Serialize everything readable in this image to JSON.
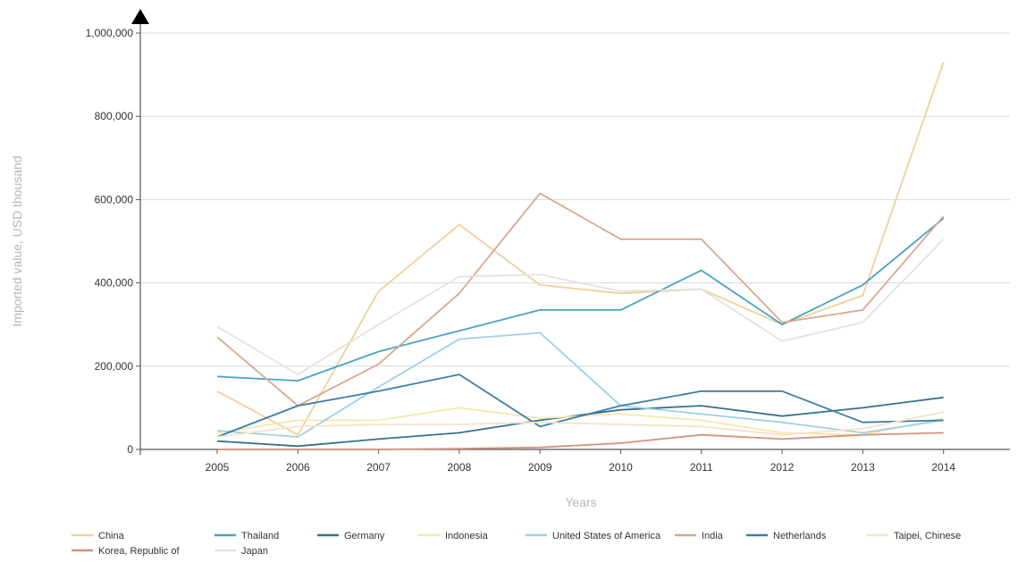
{
  "chart_data": {
    "type": "line",
    "xlabel": "Years",
    "ylabel": "Imported value, USD thousand",
    "x": [
      "2005",
      "2006",
      "2007",
      "2008",
      "2009",
      "2010",
      "2011",
      "2012",
      "2013",
      "2014"
    ],
    "ylim": [
      0,
      1000000
    ],
    "y_ticks": [
      {
        "value": 0,
        "label": "0"
      },
      {
        "value": 200000,
        "label": "200,000"
      },
      {
        "value": 400000,
        "label": "400,000"
      },
      {
        "value": 600000,
        "label": "600,000"
      },
      {
        "value": 800000,
        "label": "800,000"
      },
      {
        "value": 1000000,
        "label": "1,000,000"
      }
    ],
    "grid": true,
    "legend_position": "bottom",
    "series": [
      {
        "name": "China",
        "color": "#f2cf9a",
        "values": [
          140000,
          35000,
          380000,
          540000,
          395000,
          375000,
          385000,
          300000,
          370000,
          930000
        ]
      },
      {
        "name": "Thailand",
        "color": "#4aa3c4",
        "values": [
          175000,
          165000,
          235000,
          285000,
          335000,
          335000,
          430000,
          300000,
          395000,
          555000
        ]
      },
      {
        "name": "Germany",
        "color": "#35718c",
        "values": [
          20000,
          8000,
          25000,
          40000,
          70000,
          95000,
          105000,
          80000,
          100000,
          125000
        ]
      },
      {
        "name": "Indonesia",
        "color": "#f4e8ab",
        "values": [
          40000,
          70000,
          70000,
          100000,
          75000,
          85000,
          70000,
          40000,
          35000,
          75000
        ]
      },
      {
        "name": "United States of America",
        "color": "#9fd0e6",
        "values": [
          45000,
          30000,
          150000,
          265000,
          280000,
          105000,
          85000,
          65000,
          40000,
          70000
        ]
      },
      {
        "name": "India",
        "color": "#d7a790",
        "values": [
          270000,
          105000,
          205000,
          375000,
          615000,
          505000,
          505000,
          305000,
          335000,
          560000
        ]
      },
      {
        "name": "Netherlands",
        "color": "#3b7ea3",
        "values": [
          30000,
          105000,
          140000,
          180000,
          55000,
          105000,
          140000,
          140000,
          65000,
          70000
        ]
      },
      {
        "name": "Taipei, Chinese",
        "color": "#f7e1c4",
        "values": [
          30000,
          55000,
          60000,
          60000,
          65000,
          60000,
          55000,
          35000,
          50000,
          90000
        ]
      },
      {
        "name": "Korea, Republic of",
        "color": "#d59278",
        "values": [
          0,
          0,
          0,
          2000,
          5000,
          15000,
          35000,
          25000,
          35000,
          40000
        ]
      },
      {
        "name": "Japan",
        "color": "#e2e2e2",
        "values": [
          295000,
          180000,
          300000,
          415000,
          420000,
          380000,
          385000,
          260000,
          305000,
          505000
        ]
      }
    ]
  }
}
